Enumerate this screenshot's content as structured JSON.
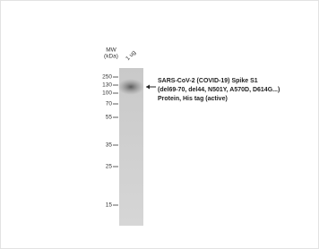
{
  "blot": {
    "mw_label": [
      "MW",
      "(kDa)"
    ],
    "lane_label": "1 ug",
    "markers": [
      "250",
      "130",
      "100",
      "70",
      "55",
      "35",
      "25",
      "15"
    ],
    "annotation": [
      "SARS-CoV-2 (COVID-19) Spike S1",
      "(del69-70, del44, N501Y, A570D, D614G...)",
      "Protein, His tag (active)"
    ]
  }
}
